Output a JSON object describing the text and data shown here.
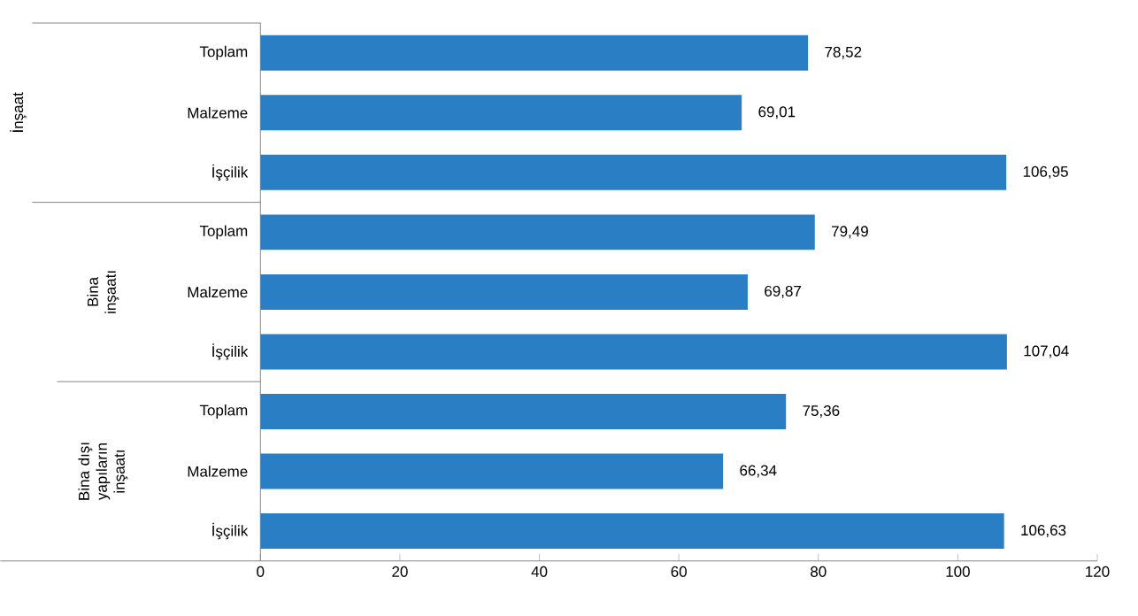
{
  "chart_data": {
    "type": "bar",
    "orientation": "horizontal",
    "categories": [
      "Toplam",
      "Malzeme",
      "İşçilik",
      "Toplam",
      "Malzeme",
      "İşçilik",
      "Toplam",
      "Malzeme",
      "İşçilik"
    ],
    "values": [
      78.52,
      69.01,
      106.95,
      79.49,
      69.87,
      107.04,
      75.36,
      66.34,
      106.63
    ],
    "value_labels": [
      "78,52",
      "69,01",
      "106,95",
      "79,49",
      "69,87",
      "107,04",
      "75,36",
      "66,34",
      "106,63"
    ],
    "color": "#2a7fc4",
    "xlim": [
      0,
      120
    ],
    "xticks": [
      0,
      20,
      40,
      60,
      80,
      100,
      120
    ],
    "annotations": [
      "İnşaat",
      "Bina inşaatı",
      "Bina dışı yapıların inşaatı"
    ],
    "grid": false
  }
}
